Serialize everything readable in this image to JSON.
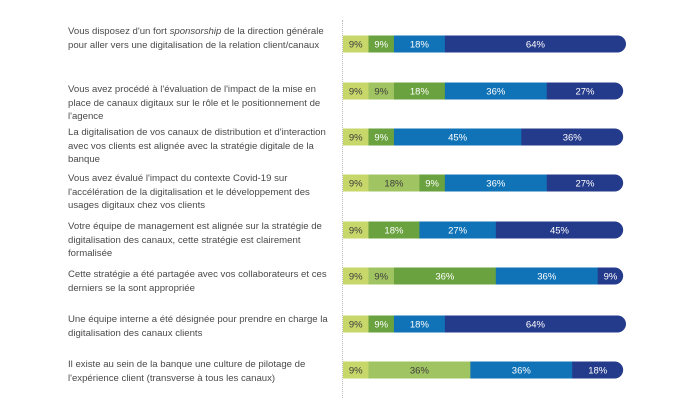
{
  "chart_data": {
    "type": "bar",
    "orientation": "horizontal",
    "stacked": true,
    "value_suffix": "%",
    "colors": [
      "#c7d76a",
      "#a0c462",
      "#69a23f",
      "#1073b7",
      "#243a8a"
    ],
    "categories": [
      "Vous disposez d'un fort sponsorship de la direction générale pour aller vers une digitalisation de la relation client/canaux",
      "Vous avez procédé à l'évaluation de l'impact de la mise en place de canaux digitaux sur le rôle et le positionnement de l'agence",
      "La digitalisation de vos canaux de distribution et d'interaction avec vos clients est alignée avec la stratégie digitale de la banque",
      "Vous avez évalué l'impact du contexte Covid-19 sur l'accélération de la digitalisation et le développement des usages digitaux chez vos clients",
      "Votre équipe de management est alignée sur la stratégie de digitalisation des canaux, cette stratégie est clairement formalisée",
      "Cette stratégie a été partagée avec vos collaborateurs et ces derniers se la sont appropriée",
      "Une équipe interne a été désignée pour prendre en charge la digitalisation des canaux clients",
      "Il existe au sein de la banque une culture de pilotage de l'expérience client (transverse à tous les canaux)"
    ],
    "rows": [
      [
        9,
        0,
        9,
        18,
        64
      ],
      [
        9,
        9,
        18,
        36,
        27
      ],
      [
        9,
        0,
        9,
        45,
        36
      ],
      [
        9,
        18,
        9,
        36,
        27
      ],
      [
        9,
        0,
        18,
        27,
        45
      ],
      [
        9,
        9,
        36,
        36,
        9
      ],
      [
        9,
        0,
        9,
        18,
        64
      ],
      [
        9,
        36,
        0,
        36,
        18
      ]
    ]
  }
}
